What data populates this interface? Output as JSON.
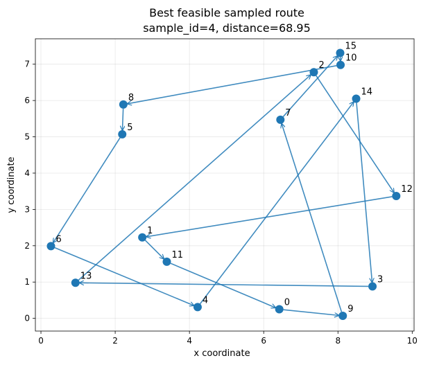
{
  "chart_data": {
    "type": "scatter",
    "title": "Best feasible sampled route",
    "subtitle": "sample_id=4, distance=68.95",
    "xlabel": "x coordinate",
    "ylabel": "y coordinate",
    "xlim": [
      -0.15,
      10.05
    ],
    "ylim": [
      -0.35,
      7.7
    ],
    "xticks": [
      0,
      2,
      4,
      6,
      8,
      10
    ],
    "yticks": [
      0,
      1,
      2,
      3,
      4,
      5,
      6,
      7
    ],
    "grid": true,
    "colors": {
      "point": "#1f77b4",
      "edge": "#1f77b4"
    },
    "points": [
      {
        "id": "0",
        "x": 6.42,
        "y": 0.25
      },
      {
        "id": "1",
        "x": 2.73,
        "y": 2.23
      },
      {
        "id": "2",
        "x": 7.35,
        "y": 6.78
      },
      {
        "id": "3",
        "x": 8.93,
        "y": 0.88
      },
      {
        "id": "4",
        "x": 4.22,
        "y": 0.31
      },
      {
        "id": "5",
        "x": 2.19,
        "y": 5.07
      },
      {
        "id": "6",
        "x": 0.27,
        "y": 1.99
      },
      {
        "id": "7",
        "x": 6.45,
        "y": 5.47
      },
      {
        "id": "8",
        "x": 2.22,
        "y": 5.89
      },
      {
        "id": "9",
        "x": 8.13,
        "y": 0.07
      },
      {
        "id": "10",
        "x": 8.07,
        "y": 6.98
      },
      {
        "id": "11",
        "x": 3.39,
        "y": 1.56
      },
      {
        "id": "12",
        "x": 9.57,
        "y": 3.37
      },
      {
        "id": "13",
        "x": 0.93,
        "y": 0.98
      },
      {
        "id": "14",
        "x": 8.49,
        "y": 6.05
      },
      {
        "id": "15",
        "x": 8.06,
        "y": 7.31
      }
    ],
    "route": [
      "4",
      "14",
      "3",
      "13",
      "2",
      "12",
      "1",
      "11",
      "0",
      "9",
      "7",
      "15",
      "10",
      "8",
      "5",
      "6",
      "4"
    ]
  }
}
